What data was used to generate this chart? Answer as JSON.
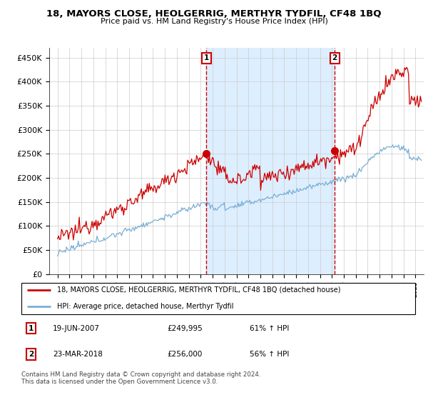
{
  "title": "18, MAYORS CLOSE, HEOLGERRIG, MERTHYR TYDFIL, CF48 1BQ",
  "subtitle": "Price paid vs. HM Land Registry's House Price Index (HPI)",
  "ylabel_ticks": [
    "£0",
    "£50K",
    "£100K",
    "£150K",
    "£200K",
    "£250K",
    "£300K",
    "£350K",
    "£400K",
    "£450K"
  ],
  "ytick_values": [
    0,
    50000,
    100000,
    150000,
    200000,
    250000,
    300000,
    350000,
    400000,
    450000
  ],
  "ylim": [
    0,
    470000
  ],
  "legend_line1": "18, MAYORS CLOSE, HEOLGERRIG, MERTHYR TYDFIL, CF48 1BQ (detached house)",
  "legend_line2": "HPI: Average price, detached house, Merthyr Tydfil",
  "sale1_date": "19-JUN-2007",
  "sale1_price": "£249,995",
  "sale1_hpi": "61% ↑ HPI",
  "sale1_year": 2007.47,
  "sale1_value": 249995,
  "sale2_date": "23-MAR-2018",
  "sale2_price": "£256,000",
  "sale2_hpi": "56% ↑ HPI",
  "sale2_year": 2018.23,
  "sale2_value": 256000,
  "footer": "Contains HM Land Registry data © Crown copyright and database right 2024.\nThis data is licensed under the Open Government Licence v3.0.",
  "line_color_red": "#cc0000",
  "line_color_blue": "#7bafd4",
  "shade_color": "#ddeeff",
  "background_color": "#ffffff",
  "grid_color": "#cccccc",
  "marker_box_color": "#cc0000"
}
